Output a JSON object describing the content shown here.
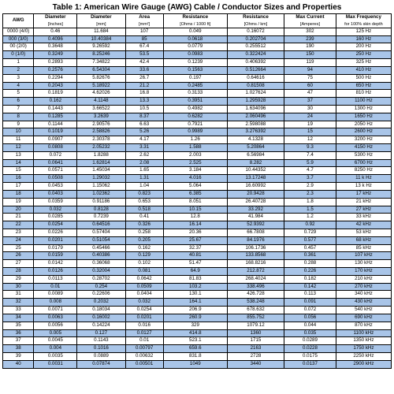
{
  "title": "Table 1: American Wire Gauge (AWG) Cable / Conductor Sizes and Properties",
  "columns": [
    {
      "label": "AWG",
      "unit": ""
    },
    {
      "label": "Diameter",
      "unit": "[Inches]"
    },
    {
      "label": "Diameter",
      "unit": "[mm]"
    },
    {
      "label": "Area",
      "unit": "[mm²]"
    },
    {
      "label": "Resistance",
      "unit": "[Ohms / 1000 ft]"
    },
    {
      "label": "Resistance",
      "unit": "[Ohms / km]"
    },
    {
      "label": "Max Current",
      "unit": "[Amperes]"
    },
    {
      "label": "Max Frequency",
      "unit": "for 100% skin depth"
    }
  ],
  "col_widths": [
    "c0",
    "c1",
    "c2",
    "c3",
    "c4",
    "c5",
    "c6",
    "c7"
  ],
  "alt_color": "#a9c5e8",
  "title_fontsize": 10,
  "cell_fontsize": 6.2,
  "rows": [
    [
      "0000 (4/0)",
      "0.46",
      "11.684",
      "107",
      "0.049",
      "0.16072",
      "302",
      "125 Hz"
    ],
    [
      "000 (3/0)",
      "0.4096",
      "10.40384",
      "85",
      "0.0618",
      "0.202704",
      "239",
      "160 Hz"
    ],
    [
      "00 (2/0)",
      "0.3648",
      "9.26592",
      "67.4",
      "0.0779",
      "0.255512",
      "190",
      "200 Hz"
    ],
    [
      "0 (1/0)",
      "0.3249",
      "8.25246",
      "53.5",
      "0.0983",
      "0.322424",
      "150",
      "250 Hz"
    ],
    [
      "1",
      "0.2893",
      "7.34822",
      "42.4",
      "0.1239",
      "0.406392",
      "119",
      "325 Hz"
    ],
    [
      "2",
      "0.2576",
      "6.54304",
      "33.6",
      "0.1563",
      "0.512664",
      "94",
      "410 Hz"
    ],
    [
      "3",
      "0.2294",
      "5.82676",
      "26.7",
      "0.197",
      "0.64616",
      "75",
      "500 Hz"
    ],
    [
      "4",
      "0.2043",
      "5.18922",
      "21.2",
      "0.2485",
      "0.81508",
      "60",
      "650 Hz"
    ],
    [
      "5",
      "0.1819",
      "4.62026",
      "16.8",
      "0.3133",
      "1.027624",
      "47",
      "810 Hz"
    ],
    [
      "6",
      "0.162",
      "4.1148",
      "13.3",
      "0.3951",
      "1.295928",
      "37",
      "1100 Hz"
    ],
    [
      "7",
      "0.1443",
      "3.66522",
      "10.5",
      "0.4982",
      "1.634096",
      "30",
      "1300 Hz"
    ],
    [
      "8",
      "0.1285",
      "3.2639",
      "8.37",
      "0.6282",
      "2.060496",
      "24",
      "1650 Hz"
    ],
    [
      "9",
      "0.1144",
      "2.90576",
      "6.63",
      "0.7921",
      "2.598088",
      "19",
      "2050 Hz"
    ],
    [
      "10",
      "0.1019",
      "2.58826",
      "5.26",
      "0.9989",
      "3.276392",
      "15",
      "2600 Hz"
    ],
    [
      "11",
      "0.0907",
      "2.30378",
      "4.17",
      "1.26",
      "4.1328",
      "12",
      "3200 Hz"
    ],
    [
      "12",
      "0.0808",
      "2.05232",
      "3.31",
      "1.588",
      "5.20864",
      "9.3",
      "4150 Hz"
    ],
    [
      "13",
      "0.072",
      "1.8288",
      "2.62",
      "2.003",
      "6.56984",
      "7.4",
      "5300 Hz"
    ],
    [
      "14",
      "0.0641",
      "1.62814",
      "2.08",
      "2.525",
      "8.282",
      "5.9",
      "6700 Hz"
    ],
    [
      "15",
      "0.0571",
      "1.45034",
      "1.65",
      "3.184",
      "10.44352",
      "4.7",
      "8250 Hz"
    ],
    [
      "16",
      "0.0508",
      "1.29032",
      "1.31",
      "4.016",
      "13.17248",
      "3.7",
      "11 k Hz"
    ],
    [
      "17",
      "0.0453",
      "1.15062",
      "1.04",
      "5.064",
      "16.60992",
      "2.9",
      "13 k Hz"
    ],
    [
      "18",
      "0.0403",
      "1.02362",
      "0.823",
      "6.385",
      "20.9428",
      "2.3",
      "17 kHz"
    ],
    [
      "19",
      "0.0359",
      "0.91186",
      "0.653",
      "8.051",
      "26.40728",
      "1.8",
      "21 kHz"
    ],
    [
      "20",
      "0.032",
      "0.8128",
      "0.518",
      "10.15",
      "33.292",
      "1.5",
      "27 kHz"
    ],
    [
      "21",
      "0.0285",
      "0.7239",
      "0.41",
      "12.8",
      "41.984",
      "1.2",
      "33 kHz"
    ],
    [
      "22",
      "0.0254",
      "0.64516",
      "0.326",
      "16.14",
      "52.9392",
      "0.92",
      "42 kHz"
    ],
    [
      "23",
      "0.0226",
      "0.57404",
      "0.258",
      "20.36",
      "66.7808",
      "0.729",
      "53 kHz"
    ],
    [
      "24",
      "0.0201",
      "0.51054",
      "0.205",
      "25.67",
      "84.1976",
      "0.577",
      "68 kHz"
    ],
    [
      "25",
      "0.0179",
      "0.45466",
      "0.162",
      "32.37",
      "106.1736",
      "0.457",
      "85 kHz"
    ],
    [
      "26",
      "0.0159",
      "0.40386",
      "0.129",
      "40.81",
      "133.8568",
      "0.361",
      "107 kHz"
    ],
    [
      "27",
      "0.0142",
      "0.36068",
      "0.102",
      "51.47",
      "168.8216",
      "0.288",
      "130 kHz"
    ],
    [
      "28",
      "0.0126",
      "0.32004",
      "0.081",
      "64.9",
      "212.872",
      "0.226",
      "170 kHz"
    ],
    [
      "29",
      "0.0113",
      "0.28702",
      "0.0642",
      "81.83",
      "268.4024",
      "0.182",
      "210 kHz"
    ],
    [
      "30",
      "0.01",
      "0.254",
      "0.0509",
      "103.2",
      "338.496",
      "0.142",
      "270 kHz"
    ],
    [
      "31",
      "0.0089",
      "0.22606",
      "0.0404",
      "130.1",
      "426.728",
      "0.113",
      "340 kHz"
    ],
    [
      "32",
      "0.008",
      "0.2032",
      "0.032",
      "164.1",
      "538.248",
      "0.091",
      "430 kHz"
    ],
    [
      "33",
      "0.0071",
      "0.18034",
      "0.0254",
      "206.9",
      "678.632",
      "0.072",
      "540 kHz"
    ],
    [
      "34",
      "0.0063",
      "0.16002",
      "0.0201",
      "260.9",
      "855.752",
      "0.056",
      "690 kHz"
    ],
    [
      "35",
      "0.0056",
      "0.14224",
      "0.016",
      "329",
      "1079.12",
      "0.044",
      "870 kHz"
    ],
    [
      "36",
      "0.005",
      "0.127",
      "0.0127",
      "414.8",
      "1360",
      "0.035",
      "1100 kHz"
    ],
    [
      "37",
      "0.0045",
      "0.1143",
      "0.01",
      "523.1",
      "1715",
      "0.0289",
      "1350 kHz"
    ],
    [
      "38",
      "0.004",
      "0.1016",
      "0.00797",
      "659.6",
      "2163",
      "0.0228",
      "1750 kHz"
    ],
    [
      "39",
      "0.0035",
      "0.0889",
      "0.00632",
      "831.8",
      "2728",
      "0.0175",
      "2250 kHz"
    ],
    [
      "40",
      "0.0031",
      "0.07874",
      "0.00501",
      "1049",
      "3440",
      "0.0137",
      "2900 kHz"
    ]
  ]
}
